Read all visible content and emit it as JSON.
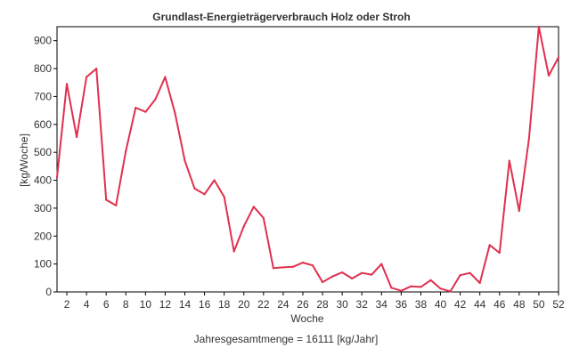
{
  "chart_data": {
    "type": "line",
    "title": "Grundlast-Energieträgerverbrauch Holz oder Stroh",
    "xlabel": "Woche",
    "ylabel": "[kg/Woche]",
    "footer": "Jahresgesamtmenge = 16111 [kg/Jahr]",
    "xlim": [
      1,
      52
    ],
    "ylim": [
      0,
      950
    ],
    "x_ticks": [
      2,
      4,
      6,
      8,
      10,
      12,
      14,
      16,
      18,
      20,
      22,
      24,
      26,
      28,
      30,
      32,
      34,
      36,
      38,
      40,
      42,
      44,
      46,
      48,
      50,
      52
    ],
    "y_ticks": [
      0,
      100,
      200,
      300,
      400,
      500,
      600,
      700,
      800,
      900
    ],
    "grid": false,
    "legend": "none",
    "series": [
      {
        "color": "#e0304e",
        "x": [
          1,
          2,
          3,
          4,
          5,
          6,
          7,
          8,
          9,
          10,
          11,
          12,
          13,
          14,
          15,
          16,
          17,
          18,
          19,
          20,
          21,
          22,
          23,
          24,
          25,
          26,
          27,
          28,
          29,
          30,
          31,
          32,
          33,
          34,
          35,
          36,
          37,
          38,
          39,
          40,
          41,
          42,
          43,
          44,
          45,
          46,
          47,
          48,
          49,
          50,
          51,
          52
        ],
        "values": [
          410,
          745,
          555,
          770,
          800,
          330,
          310,
          505,
          660,
          645,
          690,
          770,
          640,
          470,
          370,
          350,
          400,
          340,
          145,
          235,
          305,
          265,
          85,
          88,
          90,
          105,
          95,
          35,
          55,
          70,
          48,
          68,
          62,
          100,
          15,
          4,
          20,
          18,
          42,
          12,
          2,
          60,
          68,
          32,
          168,
          140,
          470,
          290,
          550,
          950,
          775,
          840
        ]
      }
    ]
  }
}
